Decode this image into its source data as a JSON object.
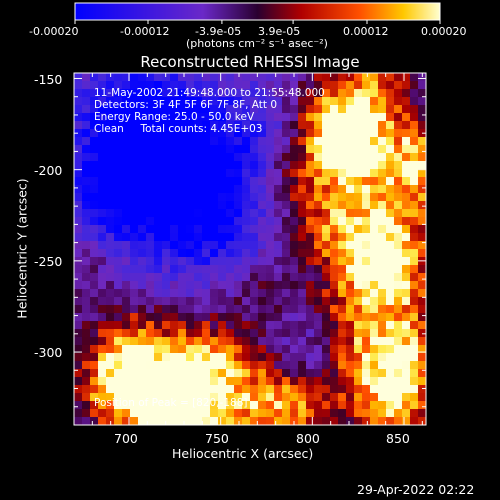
{
  "chart_data": {
    "type": "heatmap",
    "title": "Reconstructed RHESSI Image",
    "xlabel": "Heliocentric X (arcsec)",
    "ylabel": "Heliocentric Y (arcsec)",
    "xlim": [
      670,
      862
    ],
    "ylim": [
      -340,
      -147
    ],
    "x_ticks": [
      700,
      750,
      800,
      850
    ],
    "y_ticks": [
      -150,
      -200,
      -250,
      -300
    ],
    "colorbar": {
      "range": [
        -0.0002,
        0.0002
      ],
      "tick_labels": [
        "-0.00020",
        "-0.00012",
        "-3.9e-05",
        "3.9e-05",
        "0.00012",
        "0.00020"
      ],
      "tick_values": [
        -0.0002,
        -0.00012,
        -3.9e-05,
        3.9e-05,
        0.00012,
        0.0002
      ],
      "unit_label": "(photons cm⁻² s⁻¹ asec⁻²)"
    },
    "annotations": [
      "11-May-2002 21:49:48.000 to 21:55:48.000",
      "Detectors: 3F 4F 5F 6F 7F 8F, Att 0",
      "Energy Range: 25.0 - 50.0 keV",
      "Clean     Total counts: 4.45E+03"
    ],
    "peak_label": "Position of Peak = [820,-188]",
    "peak": [
      820,
      -188
    ],
    "grid": false
  },
  "timestamp": "29-Apr-2022 02:22"
}
